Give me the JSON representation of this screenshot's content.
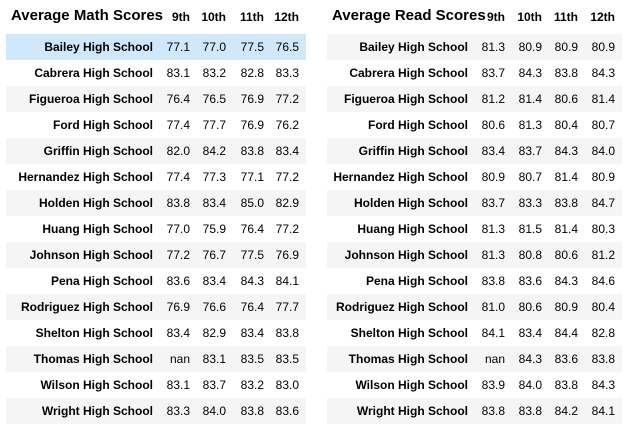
{
  "math": {
    "title": "Average Math Scores",
    "columns": [
      "9th",
      "10th",
      "11th",
      "12th"
    ],
    "selected_row": 0,
    "rows": [
      {
        "school": "Bailey High School",
        "v": [
          "77.1",
          "77.0",
          "77.5",
          "76.5"
        ]
      },
      {
        "school": "Cabrera High School",
        "v": [
          "83.1",
          "83.2",
          "82.8",
          "83.3"
        ]
      },
      {
        "school": "Figueroa High School",
        "v": [
          "76.4",
          "76.5",
          "76.9",
          "77.2"
        ]
      },
      {
        "school": "Ford High School",
        "v": [
          "77.4",
          "77.7",
          "76.9",
          "76.2"
        ]
      },
      {
        "school": "Griffin High School",
        "v": [
          "82.0",
          "84.2",
          "83.8",
          "83.4"
        ]
      },
      {
        "school": "Hernandez High School",
        "v": [
          "77.4",
          "77.3",
          "77.1",
          "77.2"
        ]
      },
      {
        "school": "Holden High School",
        "v": [
          "83.8",
          "83.4",
          "85.0",
          "82.9"
        ]
      },
      {
        "school": "Huang High School",
        "v": [
          "77.0",
          "75.9",
          "76.4",
          "77.2"
        ]
      },
      {
        "school": "Johnson High School",
        "v": [
          "77.2",
          "76.7",
          "77.5",
          "76.9"
        ]
      },
      {
        "school": "Pena High School",
        "v": [
          "83.6",
          "83.4",
          "84.3",
          "84.1"
        ]
      },
      {
        "school": "Rodriguez High School",
        "v": [
          "76.9",
          "76.6",
          "76.4",
          "77.7"
        ]
      },
      {
        "school": "Shelton High School",
        "v": [
          "83.4",
          "82.9",
          "83.4",
          "83.8"
        ]
      },
      {
        "school": "Thomas High School",
        "v": [
          "nan",
          "83.1",
          "83.5",
          "83.5"
        ]
      },
      {
        "school": "Wilson High School",
        "v": [
          "83.1",
          "83.7",
          "83.2",
          "83.0"
        ]
      },
      {
        "school": "Wright High School",
        "v": [
          "83.3",
          "84.0",
          "83.8",
          "83.6"
        ]
      }
    ]
  },
  "read": {
    "title": "Average Read Scores",
    "columns": [
      "9th",
      "10th",
      "11th",
      "12th"
    ],
    "rows": [
      {
        "school": "Bailey High School",
        "v": [
          "81.3",
          "80.9",
          "80.9",
          "80.9"
        ]
      },
      {
        "school": "Cabrera High School",
        "v": [
          "83.7",
          "84.3",
          "83.8",
          "84.3"
        ]
      },
      {
        "school": "Figueroa High School",
        "v": [
          "81.2",
          "81.4",
          "80.6",
          "81.4"
        ]
      },
      {
        "school": "Ford High School",
        "v": [
          "80.6",
          "81.3",
          "80.4",
          "80.7"
        ]
      },
      {
        "school": "Griffin High School",
        "v": [
          "83.4",
          "83.7",
          "84.3",
          "84.0"
        ]
      },
      {
        "school": "Hernandez High School",
        "v": [
          "80.9",
          "80.7",
          "81.4",
          "80.9"
        ]
      },
      {
        "school": "Holden High School",
        "v": [
          "83.7",
          "83.3",
          "83.8",
          "84.7"
        ]
      },
      {
        "school": "Huang High School",
        "v": [
          "81.3",
          "81.5",
          "81.4",
          "80.3"
        ]
      },
      {
        "school": "Johnson High School",
        "v": [
          "81.3",
          "80.8",
          "80.6",
          "81.2"
        ]
      },
      {
        "school": "Pena High School",
        "v": [
          "83.8",
          "83.6",
          "84.3",
          "84.6"
        ]
      },
      {
        "school": "Rodriguez High School",
        "v": [
          "81.0",
          "80.6",
          "80.9",
          "80.4"
        ]
      },
      {
        "school": "Shelton High School",
        "v": [
          "84.1",
          "83.4",
          "84.4",
          "82.8"
        ]
      },
      {
        "school": "Thomas High School",
        "v": [
          "nan",
          "84.3",
          "83.6",
          "83.8"
        ]
      },
      {
        "school": "Wilson High School",
        "v": [
          "83.9",
          "84.0",
          "83.8",
          "84.3"
        ]
      },
      {
        "school": "Wright High School",
        "v": [
          "83.8",
          "83.8",
          "84.2",
          "84.1"
        ]
      }
    ]
  }
}
